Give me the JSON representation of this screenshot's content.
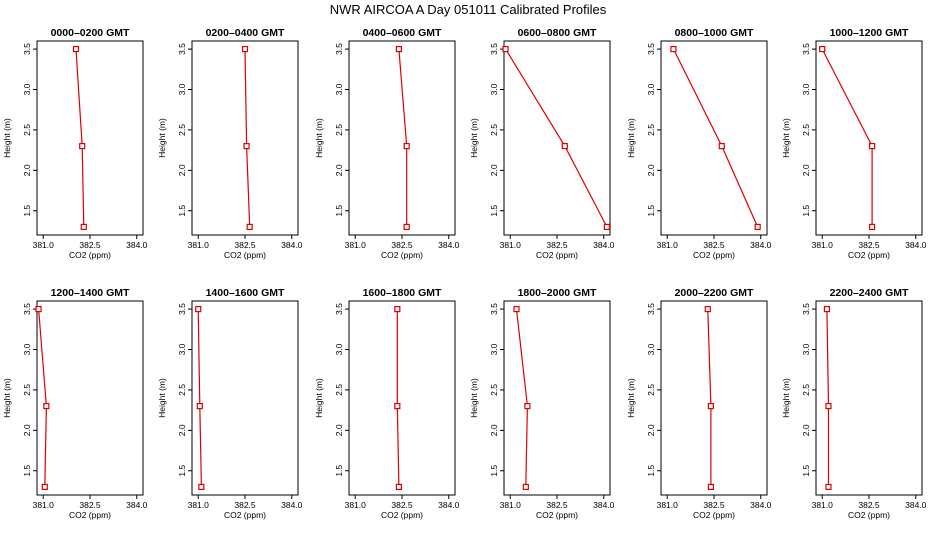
{
  "chart_data": {
    "type": "line",
    "title": "NWR AIRCOA A  Day 051011  Calibrated Profiles",
    "xlabel": "CO2 (ppm)",
    "ylabel": "Height (m)",
    "xlim": [
      380.8,
      384.2
    ],
    "ylim": [
      1.2,
      3.6
    ],
    "xticks": [
      381.0,
      382.5,
      384.0
    ],
    "xtick_labels": [
      "381.0",
      "382.5",
      "384.0"
    ],
    "yticks": [
      1.5,
      2.0,
      2.5,
      3.0,
      3.5
    ],
    "ytick_labels": [
      "1.5",
      "2.0",
      "2.5",
      "3.0",
      "3.5"
    ],
    "line_color": "#dd0000",
    "heights": [
      3.5,
      2.3,
      1.3
    ],
    "panels": [
      {
        "name": "0000–0200 GMT",
        "co2": [
          382.05,
          382.25,
          382.3
        ]
      },
      {
        "name": "0200–0400 GMT",
        "co2": [
          382.5,
          382.55,
          382.65
        ]
      },
      {
        "name": "0400–0600 GMT",
        "co2": [
          382.4,
          382.65,
          382.65
        ]
      },
      {
        "name": "0600–0800 GMT",
        "co2": [
          380.85,
          382.75,
          384.1
        ]
      },
      {
        "name": "0800–1000 GMT",
        "co2": [
          381.2,
          382.75,
          383.9
        ]
      },
      {
        "name": "1000–1200 GMT",
        "co2": [
          381.0,
          382.6,
          382.6
        ]
      },
      {
        "name": "1200–1400 GMT",
        "co2": [
          380.85,
          381.1,
          381.05
        ]
      },
      {
        "name": "1400–1600 GMT",
        "co2": [
          381.0,
          381.05,
          381.1
        ]
      },
      {
        "name": "1600–1800 GMT",
        "co2": [
          382.35,
          382.35,
          382.4
        ]
      },
      {
        "name": "1800–2000 GMT",
        "co2": [
          381.2,
          381.55,
          381.5
        ]
      },
      {
        "name": "2000–2200 GMT",
        "co2": [
          382.3,
          382.4,
          382.4
        ]
      },
      {
        "name": "2200–2400 GMT",
        "co2": [
          381.15,
          381.2,
          381.2
        ]
      }
    ]
  }
}
